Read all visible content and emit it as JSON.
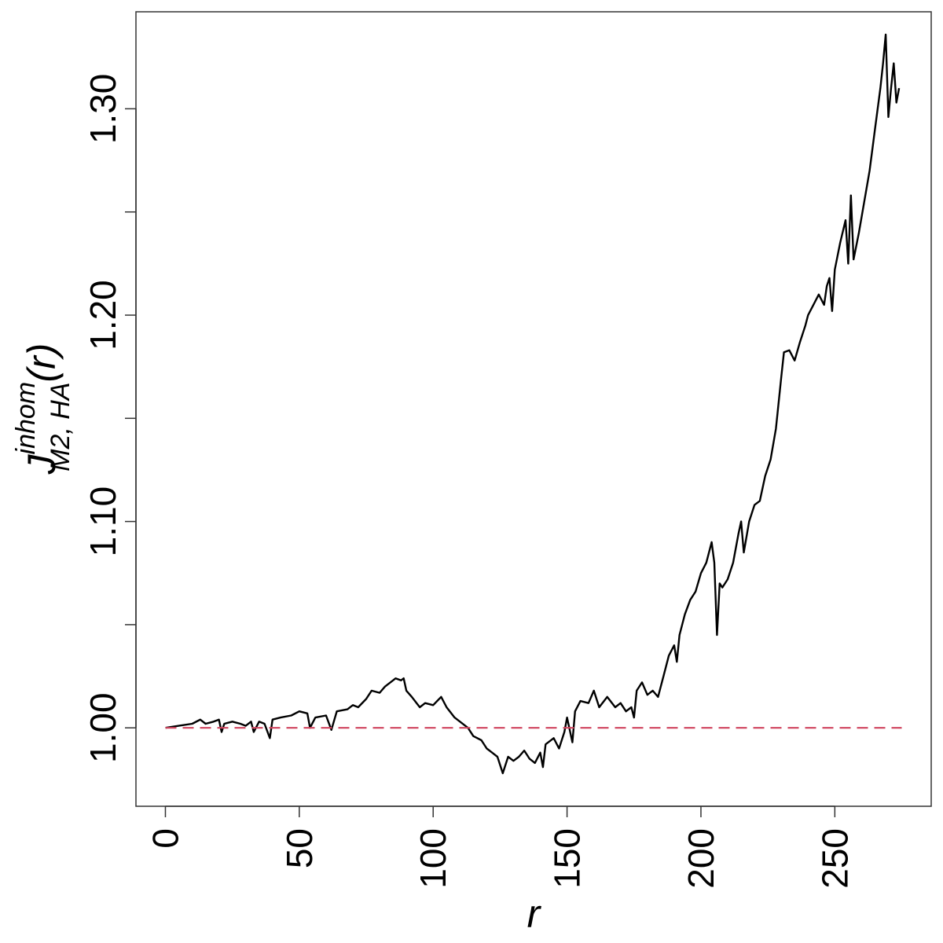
{
  "chart_data": {
    "type": "line",
    "title": "",
    "xlabel": "r",
    "ylabel": {
      "base": "J",
      "superscript": "inhom",
      "subscript": "M2, HA",
      "argument": "(r)"
    },
    "xlim": [
      -11,
      286
    ],
    "ylim": [
      0.962,
      1.347
    ],
    "grid": false,
    "legend": "none",
    "x_ticks": [
      0,
      50,
      100,
      150,
      200,
      250
    ],
    "y_ticks": [
      1.0,
      1.05,
      1.1,
      1.15,
      1.2,
      1.25,
      1.3
    ],
    "y_tick_labels": [
      "1.00",
      "",
      "1.10",
      "",
      "1.20",
      "",
      "1.30"
    ],
    "series": [
      {
        "style": "solid",
        "color": "#000000",
        "points": [
          [
            0,
            1.0
          ],
          [
            5,
            1.001
          ],
          [
            10,
            1.002
          ],
          [
            13,
            1.004
          ],
          [
            15,
            1.002
          ],
          [
            18,
            1.003
          ],
          [
            20,
            1.004
          ],
          [
            21,
            0.998
          ],
          [
            22,
            1.002
          ],
          [
            25,
            1.003
          ],
          [
            28,
            1.002
          ],
          [
            30,
            1.001
          ],
          [
            32,
            1.003
          ],
          [
            33,
            0.998
          ],
          [
            35,
            1.003
          ],
          [
            37,
            1.002
          ],
          [
            39,
            0.995
          ],
          [
            40,
            1.004
          ],
          [
            43,
            1.005
          ],
          [
            47,
            1.006
          ],
          [
            50,
            1.008
          ],
          [
            53,
            1.007
          ],
          [
            54,
            1.0
          ],
          [
            56,
            1.005
          ],
          [
            60,
            1.006
          ],
          [
            62,
            0.999
          ],
          [
            64,
            1.008
          ],
          [
            68,
            1.009
          ],
          [
            70,
            1.011
          ],
          [
            72,
            1.01
          ],
          [
            75,
            1.014
          ],
          [
            77,
            1.018
          ],
          [
            80,
            1.017
          ],
          [
            82,
            1.02
          ],
          [
            84,
            1.022
          ],
          [
            86,
            1.024
          ],
          [
            88,
            1.023
          ],
          [
            89,
            1.024
          ],
          [
            90,
            1.018
          ],
          [
            92,
            1.015
          ],
          [
            95,
            1.01
          ],
          [
            97,
            1.012
          ],
          [
            100,
            1.011
          ],
          [
            103,
            1.015
          ],
          [
            105,
            1.01
          ],
          [
            108,
            1.005
          ],
          [
            110,
            1.003
          ],
          [
            113,
            1.0
          ],
          [
            115,
            0.996
          ],
          [
            118,
            0.994
          ],
          [
            120,
            0.99
          ],
          [
            122,
            0.988
          ],
          [
            124,
            0.986
          ],
          [
            126,
            0.978
          ],
          [
            128,
            0.986
          ],
          [
            130,
            0.984
          ],
          [
            132,
            0.986
          ],
          [
            134,
            0.989
          ],
          [
            136,
            0.985
          ],
          [
            138,
            0.983
          ],
          [
            140,
            0.988
          ],
          [
            141,
            0.981
          ],
          [
            142,
            0.992
          ],
          [
            145,
            0.995
          ],
          [
            147,
            0.99
          ],
          [
            149,
            0.998
          ],
          [
            150,
            1.005
          ],
          [
            152,
            0.993
          ],
          [
            153,
            1.008
          ],
          [
            155,
            1.013
          ],
          [
            158,
            1.012
          ],
          [
            160,
            1.018
          ],
          [
            162,
            1.01
          ],
          [
            165,
            1.015
          ],
          [
            168,
            1.01
          ],
          [
            170,
            1.012
          ],
          [
            172,
            1.008
          ],
          [
            174,
            1.01
          ],
          [
            175,
            1.005
          ],
          [
            176,
            1.018
          ],
          [
            178,
            1.022
          ],
          [
            180,
            1.016
          ],
          [
            182,
            1.018
          ],
          [
            184,
            1.015
          ],
          [
            186,
            1.025
          ],
          [
            188,
            1.035
          ],
          [
            190,
            1.04
          ],
          [
            191,
            1.032
          ],
          [
            192,
            1.045
          ],
          [
            194,
            1.055
          ],
          [
            196,
            1.062
          ],
          [
            198,
            1.066
          ],
          [
            200,
            1.075
          ],
          [
            202,
            1.08
          ],
          [
            204,
            1.09
          ],
          [
            205,
            1.08
          ],
          [
            206,
            1.045
          ],
          [
            207,
            1.07
          ],
          [
            208,
            1.068
          ],
          [
            210,
            1.072
          ],
          [
            212,
            1.08
          ],
          [
            214,
            1.094
          ],
          [
            215,
            1.1
          ],
          [
            216,
            1.085
          ],
          [
            218,
            1.1
          ],
          [
            220,
            1.108
          ],
          [
            222,
            1.11
          ],
          [
            224,
            1.122
          ],
          [
            226,
            1.13
          ],
          [
            228,
            1.145
          ],
          [
            230,
            1.17
          ],
          [
            231,
            1.182
          ],
          [
            233,
            1.183
          ],
          [
            235,
            1.178
          ],
          [
            237,
            1.187
          ],
          [
            239,
            1.195
          ],
          [
            240,
            1.2
          ],
          [
            242,
            1.205
          ],
          [
            244,
            1.21
          ],
          [
            246,
            1.205
          ],
          [
            247,
            1.214
          ],
          [
            248,
            1.218
          ],
          [
            249,
            1.202
          ],
          [
            250,
            1.222
          ],
          [
            252,
            1.235
          ],
          [
            254,
            1.246
          ],
          [
            255,
            1.225
          ],
          [
            256,
            1.258
          ],
          [
            257,
            1.227
          ],
          [
            259,
            1.24
          ],
          [
            261,
            1.255
          ],
          [
            263,
            1.27
          ],
          [
            265,
            1.29
          ],
          [
            267,
            1.31
          ],
          [
            268,
            1.322
          ],
          [
            269,
            1.336
          ],
          [
            270,
            1.296
          ],
          [
            271,
            1.31
          ],
          [
            272,
            1.322
          ],
          [
            273,
            1.303
          ],
          [
            274,
            1.31
          ]
        ]
      },
      {
        "style": "dashed",
        "color": "#d0455f",
        "points": [
          [
            0,
            1.0
          ],
          [
            275,
            1.0
          ]
        ]
      }
    ]
  }
}
